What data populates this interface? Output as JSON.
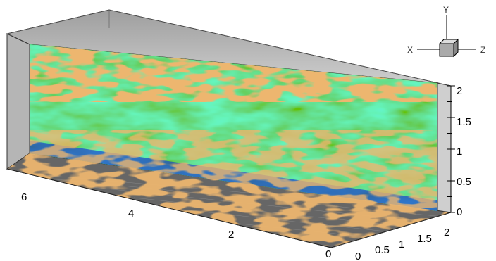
{
  "axes_gizmo": {
    "y_label": "Y",
    "x_label": "X",
    "z_label": "Z"
  },
  "x_axis_ticks": [
    "6",
    "4",
    "2",
    "0"
  ],
  "y_axis_ticks": [
    "2",
    "1.5",
    "1",
    "0.5",
    "0"
  ],
  "z_axis_ticks": [
    "0",
    "0.5",
    "1",
    "1.5",
    "2"
  ],
  "colors": {
    "background": "#ffffff",
    "wall_gray": "#bdbdbd",
    "floor_dark": "#6b6b6b",
    "field_green": "#4fd21e",
    "field_cyan": "#2bc4d8",
    "field_blue": "#1840d0",
    "field_yellow": "#c8d81a",
    "isosurface_orange": "#d8782a"
  }
}
